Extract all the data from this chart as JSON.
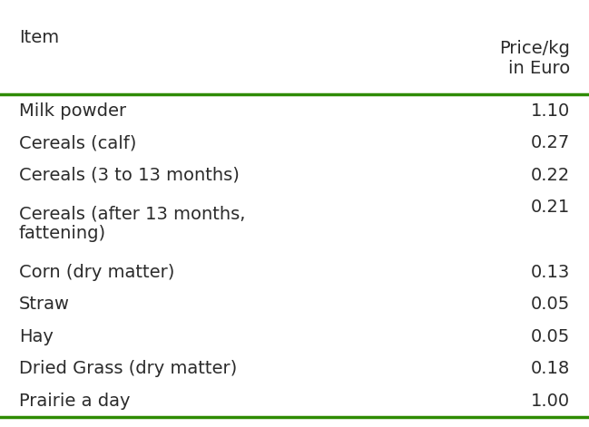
{
  "col1_header": "Item",
  "col2_header": "Price/kg\nin Euro",
  "rows": [
    [
      "Milk powder",
      "1.10"
    ],
    [
      "Cereals (calf)",
      "0.27"
    ],
    [
      "Cereals (3 to 13 months)",
      "0.22"
    ],
    [
      "Cereals (after 13 months,\nfattening)",
      "0.21"
    ],
    [
      "Corn (dry matter)",
      "0.13"
    ],
    [
      "Straw",
      "0.05"
    ],
    [
      "Hay",
      "0.05"
    ],
    [
      "Dried Grass (dry matter)",
      "0.18"
    ],
    [
      "Prairie a day",
      "1.00"
    ]
  ],
  "background_color": "#ffffff",
  "text_color": "#2b2b2b",
  "line_color": "#2e8b00",
  "font_size": 14,
  "header_font_size": 14
}
